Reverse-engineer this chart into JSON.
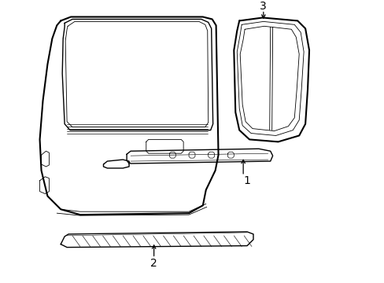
{
  "background_color": "#ffffff",
  "line_color": "#000000",
  "lw_main": 1.5,
  "lw_med": 1.0,
  "lw_thin": 0.6,
  "label_1": "1",
  "label_2": "2",
  "label_3": "3",
  "figsize": [
    4.89,
    3.6
  ],
  "dpi": 100
}
